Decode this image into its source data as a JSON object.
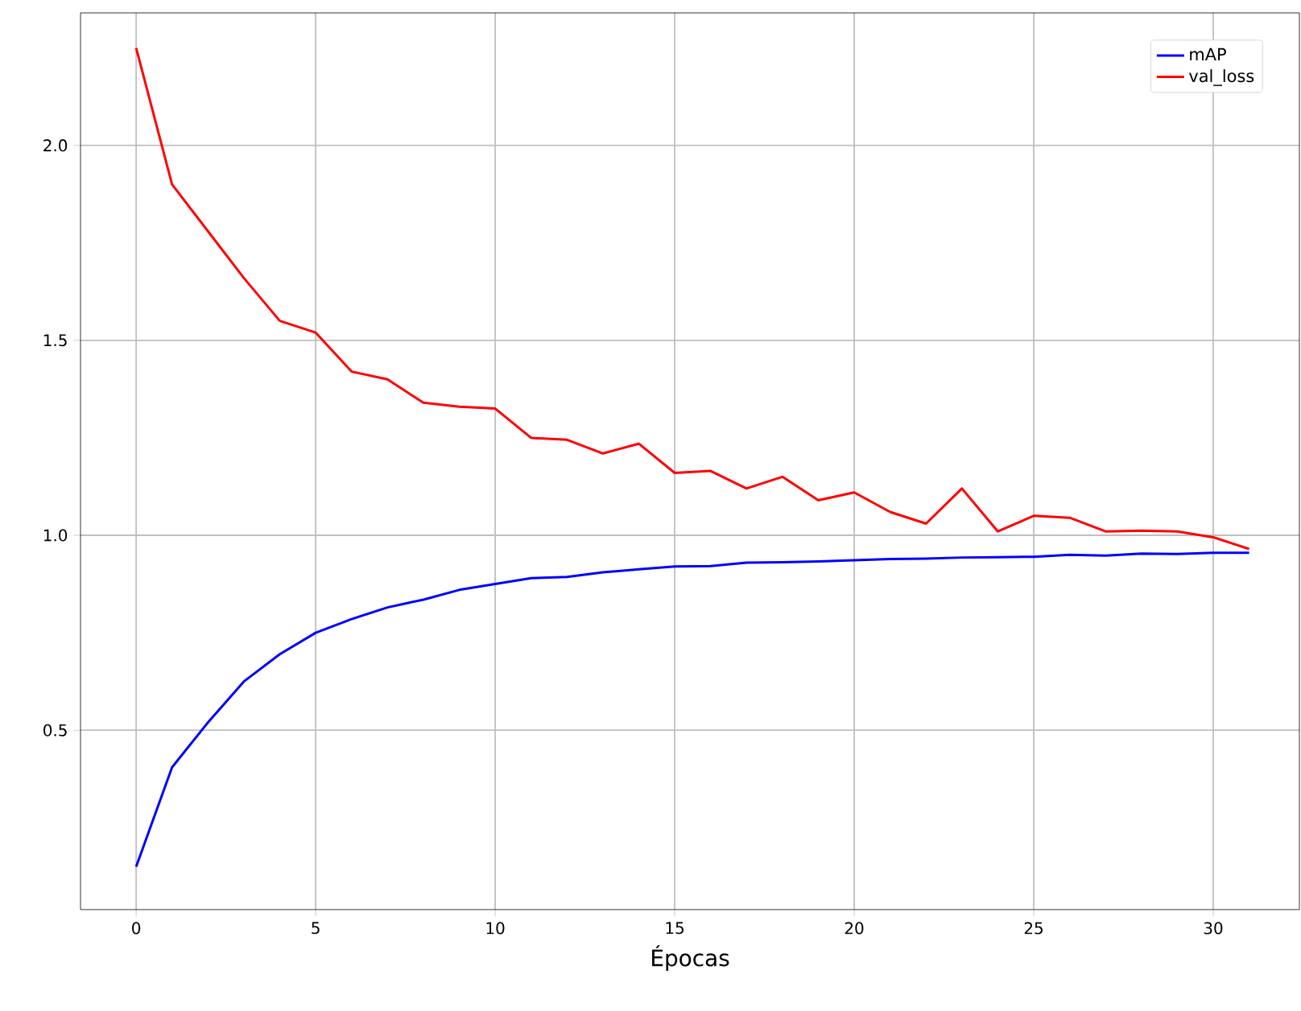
{
  "chart_data": {
    "type": "line",
    "xlabel": "Épocas",
    "x": [
      0,
      1,
      2,
      3,
      4,
      5,
      6,
      7,
      8,
      9,
      10,
      11,
      12,
      13,
      14,
      15,
      16,
      17,
      18,
      19,
      20,
      21,
      22,
      23,
      24,
      25,
      26,
      27,
      28,
      29,
      30,
      31
    ],
    "series": [
      {
        "name": "mAP",
        "color": "#0000ff",
        "values": [
          0.15,
          0.405,
          0.52,
          0.625,
          0.695,
          0.75,
          0.785,
          0.815,
          0.835,
          0.86,
          0.875,
          0.89,
          0.893,
          0.905,
          0.913,
          0.92,
          0.921,
          0.93,
          0.931,
          0.933,
          0.936,
          0.939,
          0.94,
          0.943,
          0.944,
          0.945,
          0.95,
          0.948,
          0.953,
          0.952,
          0.955,
          0.955
        ]
      },
      {
        "name": "val_loss",
        "color": "#ff0000",
        "values": [
          2.25,
          1.9,
          1.78,
          1.66,
          1.55,
          1.52,
          1.42,
          1.4,
          1.34,
          1.33,
          1.325,
          1.25,
          1.245,
          1.21,
          1.235,
          1.16,
          1.165,
          1.12,
          1.15,
          1.09,
          1.11,
          1.06,
          1.03,
          1.12,
          1.01,
          1.05,
          1.045,
          1.01,
          1.012,
          1.01,
          0.995,
          0.965
        ]
      }
    ],
    "xlim": [
      -1.55,
      32.4
    ],
    "ylim": [
      0.04,
      2.34
    ],
    "xticks": [
      0,
      5,
      10,
      15,
      20,
      25,
      30
    ],
    "yticks": [
      {
        "value": 0.5,
        "label": "0.5"
      },
      {
        "value": 1.0,
        "label": "1.0"
      },
      {
        "value": 1.5,
        "label": "1.5"
      },
      {
        "value": 2.0,
        "label": "2.0"
      }
    ],
    "grid": true,
    "legend": "top right",
    "line_style": "solid",
    "marker": "none"
  }
}
